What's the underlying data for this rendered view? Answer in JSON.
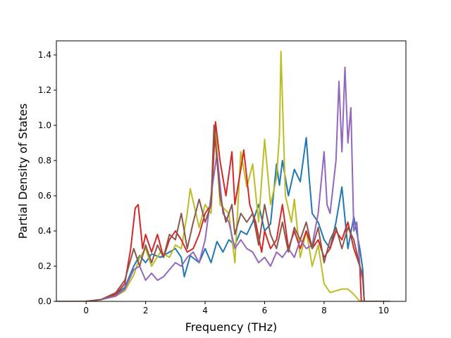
{
  "chart_data": {
    "type": "line",
    "title": "",
    "xlabel": "Frequency (THz)",
    "ylabel": "Partial Density of States",
    "xlim": [
      -1.0,
      10.75
    ],
    "ylim": [
      0.0,
      1.48
    ],
    "xticks": [
      0,
      2,
      4,
      6,
      8,
      10
    ],
    "yticks": [
      0.0,
      0.2,
      0.4,
      0.6,
      0.8,
      1.0,
      1.2,
      1.4
    ],
    "xtick_labels": [
      "0",
      "2",
      "4",
      "6",
      "8",
      "10"
    ],
    "ytick_labels": [
      "0.0",
      "0.2",
      "0.4",
      "0.6",
      "0.8",
      "1.0",
      "1.2",
      "1.4"
    ],
    "grid": false,
    "legend": "none",
    "series": [
      {
        "color": "#1f77b4",
        "x": [
          -1.0,
          0.0,
          0.5,
          1.0,
          1.3,
          1.6,
          1.8,
          2.0,
          2.2,
          2.5,
          2.8,
          3.0,
          3.2,
          3.3,
          3.5,
          3.8,
          4.0,
          4.2,
          4.4,
          4.6,
          4.8,
          5.0,
          5.2,
          5.4,
          5.6,
          5.8,
          6.0,
          6.2,
          6.4,
          6.5,
          6.6,
          6.8,
          7.0,
          7.2,
          7.4,
          7.5,
          7.6,
          7.8,
          8.0,
          8.2,
          8.4,
          8.6,
          8.8,
          9.0,
          9.2,
          9.3,
          9.35,
          10.2
        ],
        "y": [
          0.0,
          0.0,
          0.01,
          0.04,
          0.08,
          0.2,
          0.26,
          0.22,
          0.27,
          0.25,
          0.28,
          0.3,
          0.25,
          0.14,
          0.26,
          0.22,
          0.3,
          0.22,
          0.34,
          0.28,
          0.35,
          0.32,
          0.4,
          0.38,
          0.45,
          0.55,
          0.4,
          0.44,
          0.78,
          0.66,
          0.8,
          0.6,
          0.75,
          0.68,
          0.93,
          0.7,
          0.5,
          0.45,
          0.35,
          0.3,
          0.45,
          0.65,
          0.3,
          0.48,
          0.3,
          0.18,
          0.0,
          0.0
        ]
      },
      {
        "color": "#bcbd22",
        "x": [
          -1.0,
          0.0,
          0.5,
          1.0,
          1.3,
          1.6,
          1.8,
          2.0,
          2.2,
          2.5,
          2.8,
          3.0,
          3.2,
          3.4,
          3.5,
          3.8,
          4.0,
          4.2,
          4.35,
          4.5,
          4.8,
          5.0,
          5.2,
          5.4,
          5.6,
          5.8,
          6.0,
          6.2,
          6.4,
          6.5,
          6.55,
          6.7,
          6.9,
          7.0,
          7.2,
          7.4,
          7.6,
          7.8,
          8.0,
          8.2,
          8.4,
          8.6,
          8.8,
          9.0,
          9.2,
          9.25,
          10.2
        ],
        "y": [
          0.0,
          0.0,
          0.01,
          0.03,
          0.06,
          0.15,
          0.25,
          0.3,
          0.2,
          0.28,
          0.25,
          0.32,
          0.3,
          0.5,
          0.64,
          0.42,
          0.55,
          0.5,
          1.02,
          0.55,
          0.5,
          0.22,
          0.85,
          0.65,
          0.78,
          0.45,
          0.92,
          0.55,
          0.7,
          0.95,
          1.42,
          0.6,
          0.45,
          0.58,
          0.25,
          0.4,
          0.2,
          0.32,
          0.1,
          0.05,
          0.06,
          0.07,
          0.07,
          0.04,
          0.0,
          0.0,
          0.0
        ]
      },
      {
        "color": "#d62728",
        "x": [
          -1.0,
          0.0,
          0.5,
          1.0,
          1.3,
          1.5,
          1.65,
          1.75,
          1.9,
          2.0,
          2.2,
          2.4,
          2.6,
          2.8,
          3.0,
          3.2,
          3.4,
          3.6,
          3.8,
          4.0,
          4.2,
          4.35,
          4.5,
          4.7,
          4.9,
          5.0,
          5.2,
          5.3,
          5.5,
          5.7,
          5.9,
          6.0,
          6.2,
          6.4,
          6.6,
          6.8,
          7.0,
          7.2,
          7.4,
          7.6,
          7.8,
          8.0,
          8.2,
          8.4,
          8.6,
          8.8,
          9.0,
          9.2,
          9.25,
          10.2
        ],
        "y": [
          0.0,
          0.0,
          0.01,
          0.04,
          0.1,
          0.3,
          0.53,
          0.55,
          0.3,
          0.38,
          0.28,
          0.38,
          0.25,
          0.35,
          0.4,
          0.35,
          0.28,
          0.3,
          0.38,
          0.5,
          0.55,
          1.02,
          0.8,
          0.6,
          0.85,
          0.55,
          0.75,
          0.86,
          0.55,
          0.45,
          0.28,
          0.4,
          0.3,
          0.35,
          0.55,
          0.3,
          0.4,
          0.3,
          0.4,
          0.3,
          0.35,
          0.25,
          0.3,
          0.4,
          0.35,
          0.45,
          0.3,
          0.2,
          0.0,
          0.0
        ]
      },
      {
        "color": "#9467bd",
        "x": [
          -1.0,
          0.0,
          0.5,
          1.0,
          1.3,
          1.6,
          1.8,
          2.0,
          2.2,
          2.4,
          2.6,
          2.8,
          3.0,
          3.2,
          3.4,
          3.6,
          3.8,
          4.0,
          4.2,
          4.4,
          4.6,
          4.8,
          5.0,
          5.2,
          5.4,
          5.6,
          5.8,
          6.0,
          6.2,
          6.4,
          6.6,
          6.8,
          7.0,
          7.2,
          7.4,
          7.6,
          7.8,
          8.0,
          8.1,
          8.2,
          8.4,
          8.5,
          8.6,
          8.7,
          8.8,
          8.9,
          9.0,
          9.1,
          9.2,
          9.3,
          9.35,
          10.2
        ],
        "y": [
          0.0,
          0.0,
          0.01,
          0.03,
          0.07,
          0.18,
          0.2,
          0.12,
          0.16,
          0.12,
          0.14,
          0.18,
          0.22,
          0.2,
          0.25,
          0.28,
          0.22,
          0.35,
          0.6,
          0.84,
          0.5,
          0.45,
          0.3,
          0.35,
          0.3,
          0.28,
          0.22,
          0.25,
          0.2,
          0.28,
          0.25,
          0.3,
          0.25,
          0.35,
          0.3,
          0.32,
          0.5,
          0.85,
          0.55,
          0.5,
          0.8,
          1.25,
          0.85,
          1.33,
          0.9,
          1.1,
          0.4,
          0.45,
          0.2,
          0.12,
          0.0,
          0.0
        ]
      },
      {
        "color": "#8c564b",
        "x": [
          -1.0,
          0.0,
          0.5,
          1.0,
          1.3,
          1.6,
          1.8,
          2.0,
          2.2,
          2.4,
          2.6,
          2.8,
          3.0,
          3.2,
          3.4,
          3.6,
          3.8,
          4.0,
          4.2,
          4.3,
          4.5,
          4.7,
          4.9,
          5.0,
          5.2,
          5.4,
          5.6,
          5.8,
          6.0,
          6.2,
          6.4,
          6.6,
          6.8,
          7.0,
          7.2,
          7.4,
          7.6,
          7.8,
          8.0,
          8.2,
          8.4,
          8.6,
          8.8,
          9.0,
          9.2,
          9.3,
          9.35,
          10.2
        ],
        "y": [
          0.0,
          0.0,
          0.01,
          0.05,
          0.12,
          0.3,
          0.2,
          0.32,
          0.22,
          0.32,
          0.25,
          0.38,
          0.35,
          0.5,
          0.3,
          0.45,
          0.58,
          0.45,
          0.55,
          1.0,
          0.6,
          0.45,
          0.55,
          0.38,
          0.5,
          0.45,
          0.5,
          0.32,
          0.55,
          0.38,
          0.3,
          0.45,
          0.28,
          0.42,
          0.35,
          0.45,
          0.3,
          0.42,
          0.22,
          0.35,
          0.42,
          0.3,
          0.42,
          0.35,
          0.2,
          0.15,
          0.0,
          0.0
        ]
      }
    ]
  }
}
